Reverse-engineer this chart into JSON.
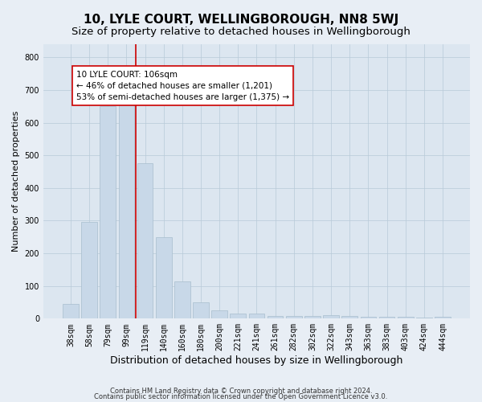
{
  "title": "10, LYLE COURT, WELLINGBOROUGH, NN8 5WJ",
  "subtitle": "Size of property relative to detached houses in Wellingborough",
  "xlabel": "Distribution of detached houses by size in Wellingborough",
  "ylabel": "Number of detached properties",
  "categories": [
    "38sqm",
    "58sqm",
    "79sqm",
    "99sqm",
    "119sqm",
    "140sqm",
    "160sqm",
    "180sqm",
    "200sqm",
    "221sqm",
    "241sqm",
    "261sqm",
    "282sqm",
    "302sqm",
    "322sqm",
    "343sqm",
    "363sqm",
    "383sqm",
    "403sqm",
    "424sqm",
    "444sqm"
  ],
  "values": [
    45,
    295,
    650,
    660,
    475,
    250,
    115,
    50,
    25,
    15,
    15,
    8,
    8,
    8,
    10,
    8,
    5,
    5,
    5,
    3,
    5
  ],
  "bar_color": "#c8d8e8",
  "bar_edgecolor": "#a8bece",
  "grid_color": "#b8cad8",
  "background_color": "#dce6f0",
  "fig_background_color": "#e8eef5",
  "property_line_x": 3.5,
  "property_line_color": "#cc0000",
  "annotation_text": "10 LYLE COURT: 106sqm\n← 46% of detached houses are smaller (1,201)\n53% of semi-detached houses are larger (1,375) →",
  "annotation_box_facecolor": "#ffffff",
  "annotation_box_edgecolor": "#cc0000",
  "ylim": [
    0,
    840
  ],
  "yticks": [
    0,
    100,
    200,
    300,
    400,
    500,
    600,
    700,
    800
  ],
  "footer_line1": "Contains HM Land Registry data © Crown copyright and database right 2024.",
  "footer_line2": "Contains public sector information licensed under the Open Government Licence v3.0.",
  "title_fontsize": 11,
  "subtitle_fontsize": 9.5,
  "tick_fontsize": 7,
  "ylabel_fontsize": 8,
  "xlabel_fontsize": 9,
  "footer_fontsize": 6,
  "annotation_fontsize": 7.5
}
